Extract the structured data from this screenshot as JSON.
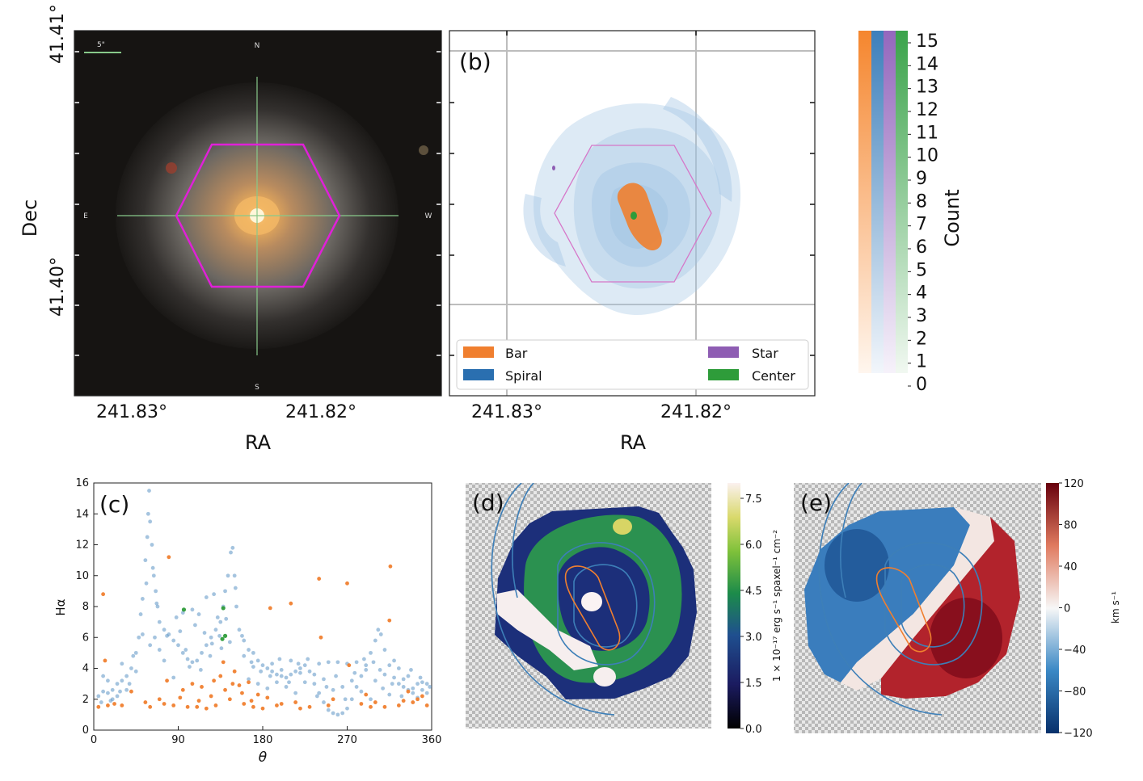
{
  "panels": {
    "a": {
      "xlabel": "RA",
      "ylabel": "Dec",
      "xticks": [
        "241.83°",
        "241.82°"
      ],
      "yticks": [
        "41.41°",
        "41.40°"
      ],
      "compass": {
        "n": "N",
        "s": "S",
        "e": "E",
        "w": "W"
      },
      "scalebar": "5\""
    },
    "b": {
      "letter": "(b)",
      "xlabel": "RA",
      "xticks": [
        "241.83°",
        "241.82°"
      ],
      "legend": [
        {
          "label": "Bar",
          "color": "#f07f2f"
        },
        {
          "label": "Spiral",
          "color": "#2a6fb0"
        },
        {
          "label": "Star",
          "color": "#8e5db3"
        },
        {
          "label": "Center",
          "color": "#2e9c3a"
        }
      ]
    },
    "count_colorbar": {
      "label": "Count",
      "ticks": [
        "15",
        "14",
        "13",
        "12",
        "11",
        "10",
        "9",
        "8",
        "7",
        "6",
        "5",
        "4",
        "3",
        "2",
        "1",
        "0"
      ]
    },
    "d": {
      "letter": "(d)",
      "colorbar_ticks": [
        "7.5",
        "6.0",
        "4.5",
        "3.0",
        "1.5",
        "0.0"
      ],
      "colorbar_label": "1 × 10⁻¹⁷ erg s⁻¹ spaxel⁻¹ cm⁻²"
    },
    "e": {
      "letter": "(e)",
      "colorbar_ticks": [
        "120",
        "80",
        "40",
        "0",
        "−40",
        "−80",
        "−120"
      ],
      "colorbar_label": "km s⁻¹"
    }
  },
  "chart_data": [
    {
      "type": "scatter",
      "panel": "(c)",
      "title": "",
      "xlabel": "θ",
      "ylabel": "Hα",
      "xlim": [
        0,
        360
      ],
      "ylim": [
        0,
        16
      ],
      "xticks": [
        0,
        90,
        180,
        270,
        360
      ],
      "yticks": [
        0,
        2,
        4,
        6,
        8,
        10,
        12,
        14,
        16
      ],
      "series": [
        {
          "name": "Spiral",
          "color": "#5b93c4",
          "points": [
            [
              5,
              2.2
            ],
            [
              10,
              2.5
            ],
            [
              15,
              2.4
            ],
            [
              20,
              2.6
            ],
            [
              25,
              3.0
            ],
            [
              30,
              3.2
            ],
            [
              35,
              3.5
            ],
            [
              40,
              4.0
            ],
            [
              45,
              5.0
            ],
            [
              48,
              6.0
            ],
            [
              50,
              7.5
            ],
            [
              52,
              8.5
            ],
            [
              55,
              11
            ],
            [
              57,
              12.5
            ],
            [
              58,
              14
            ],
            [
              59,
              15.5
            ],
            [
              60,
              13.5
            ],
            [
              62,
              12
            ],
            [
              64,
              10
            ],
            [
              66,
              9
            ],
            [
              68,
              8
            ],
            [
              70,
              7
            ],
            [
              75,
              6.5
            ],
            [
              80,
              6.2
            ],
            [
              85,
              5.8
            ],
            [
              90,
              5.5
            ],
            [
              95,
              5.0
            ],
            [
              100,
              4.6
            ],
            [
              105,
              4.4
            ],
            [
              110,
              4.5
            ],
            [
              115,
              5.0
            ],
            [
              120,
              5.5
            ],
            [
              125,
              6.0
            ],
            [
              130,
              6.5
            ],
            [
              135,
              7.0
            ],
            [
              138,
              8.0
            ],
            [
              140,
              9.0
            ],
            [
              143,
              10
            ],
            [
              146,
              11.5
            ],
            [
              148,
              11.8
            ],
            [
              150,
              10
            ],
            [
              152,
              8
            ],
            [
              155,
              6.5
            ],
            [
              160,
              5.8
            ],
            [
              165,
              5.2
            ],
            [
              170,
              5.0
            ],
            [
              175,
              4.5
            ],
            [
              180,
              4.2
            ],
            [
              185,
              4.0
            ],
            [
              190,
              3.8
            ],
            [
              195,
              3.6
            ],
            [
              200,
              3.5
            ],
            [
              205,
              3.4
            ],
            [
              210,
              3.6
            ],
            [
              215,
              3.8
            ],
            [
              220,
              4.0
            ],
            [
              225,
              4.2
            ],
            [
              230,
              3.8
            ],
            [
              235,
              3.0
            ],
            [
              240,
              2.4
            ],
            [
              245,
              1.8
            ],
            [
              250,
              1.3
            ],
            [
              255,
              1.1
            ],
            [
              260,
              1.0
            ],
            [
              265,
              1.1
            ],
            [
              270,
              1.4
            ],
            [
              275,
              2.0
            ],
            [
              280,
              2.8
            ],
            [
              285,
              3.5
            ],
            [
              290,
              4.2
            ],
            [
              295,
              5.0
            ],
            [
              300,
              5.8
            ],
            [
              303,
              6.5
            ],
            [
              306,
              6.2
            ],
            [
              310,
              5.2
            ],
            [
              315,
              4.2
            ],
            [
              320,
              3.4
            ],
            [
              325,
              3.0
            ],
            [
              330,
              2.8
            ],
            [
              335,
              2.6
            ],
            [
              340,
              2.7
            ],
            [
              345,
              3.0
            ],
            [
              350,
              3.1
            ],
            [
              355,
              3.0
            ],
            [
              20,
              2.0
            ],
            [
              30,
              4.3
            ],
            [
              42,
              4.8
            ],
            [
              60,
              5.5
            ],
            [
              70,
              5.2
            ],
            [
              88,
              7.3
            ],
            [
              95,
              7.6
            ],
            [
              105,
              7.8
            ],
            [
              112,
              7.5
            ],
            [
              120,
              8.6
            ],
            [
              128,
              8.8
            ],
            [
              132,
              7.3
            ],
            [
              160,
              4.8
            ],
            [
              170,
              4.1
            ],
            [
              190,
              4.3
            ],
            [
              200,
              3.9
            ],
            [
              210,
              4.5
            ],
            [
              220,
              3.7
            ],
            [
              240,
              4.3
            ],
            [
              250,
              4.4
            ],
            [
              260,
              4.4
            ],
            [
              270,
              4.3
            ],
            [
              280,
              4.4
            ],
            [
              290,
              3.9
            ],
            [
              300,
              3.2
            ],
            [
              310,
              3.6
            ],
            [
              320,
              4.5
            ],
            [
              330,
              3.3
            ],
            [
              340,
              2.4
            ],
            [
              350,
              2.6
            ],
            [
              10,
              3.5
            ],
            [
              15,
              3.2
            ],
            [
              25,
              2.2
            ],
            [
              35,
              2.6
            ],
            [
              45,
              3.8
            ],
            [
              65,
              6.0
            ],
            [
              75,
              4.5
            ],
            [
              85,
              3.4
            ],
            [
              98,
              5.2
            ],
            [
              108,
              6.8
            ],
            [
              118,
              6.3
            ],
            [
              124,
              4.8
            ],
            [
              136,
              5.3
            ],
            [
              145,
              5.7
            ],
            [
              165,
              3.3
            ],
            [
              175,
              3.0
            ],
            [
              185,
              2.7
            ],
            [
              195,
              3.1
            ],
            [
              205,
              2.8
            ],
            [
              215,
              2.4
            ],
            [
              225,
              3.1
            ],
            [
              235,
              3.6
            ],
            [
              245,
              3.3
            ],
            [
              255,
              2.6
            ],
            [
              265,
              2.8
            ],
            [
              275,
              3.2
            ],
            [
              285,
              2.5
            ],
            [
              295,
              2.0
            ],
            [
              305,
              3.9
            ],
            [
              315,
              2.3
            ],
            [
              325,
              4.0
            ],
            [
              335,
              3.5
            ],
            [
              345,
              2.1
            ],
            [
              355,
              2.4
            ],
            [
              8,
              1.8
            ],
            [
              18,
              1.9
            ],
            [
              28,
              2.5
            ],
            [
              38,
              3.0
            ],
            [
              52,
              6.2
            ],
            [
              56,
              9.5
            ],
            [
              63,
              10.5
            ],
            [
              67,
              8.2
            ],
            [
              78,
              6.1
            ],
            [
              92,
              6.4
            ],
            [
              102,
              4.1
            ],
            [
              114,
              3.9
            ],
            [
              126,
              5.6
            ],
            [
              134,
              6.1
            ],
            [
              141,
              7.2
            ],
            [
              151,
              9.2
            ],
            [
              158,
              6.1
            ],
            [
              168,
              4.4
            ],
            [
              178,
              3.8
            ],
            [
              188,
              3.5
            ],
            [
              198,
              4.6
            ],
            [
              208,
              3.1
            ],
            [
              218,
              4.3
            ],
            [
              228,
              4.6
            ],
            [
              238,
              2.2
            ],
            [
              248,
              2.8
            ],
            [
              258,
              3.5
            ],
            [
              268,
              2.0
            ],
            [
              278,
              3.7
            ],
            [
              288,
              4.6
            ],
            [
              298,
              4.4
            ],
            [
              308,
              2.7
            ],
            [
              318,
              3.0
            ],
            [
              328,
              2.2
            ],
            [
              338,
              3.9
            ],
            [
              348,
              3.4
            ],
            [
              358,
              2.8
            ]
          ]
        },
        {
          "name": "Bar",
          "color": "#f07f2f",
          "points": [
            [
              5,
              1.5
            ],
            [
              10,
              8.8
            ],
            [
              12,
              4.5
            ],
            [
              15,
              1.6
            ],
            [
              22,
              1.7
            ],
            [
              30,
              1.6
            ],
            [
              40,
              2.5
            ],
            [
              55,
              1.8
            ],
            [
              70,
              2.0
            ],
            [
              78,
              3.2
            ],
            [
              80,
              11.2
            ],
            [
              85,
              1.6
            ],
            [
              92,
              2.1
            ],
            [
              100,
              1.5
            ],
            [
              105,
              3.0
            ],
            [
              110,
              1.5
            ],
            [
              115,
              2.8
            ],
            [
              120,
              1.4
            ],
            [
              125,
              2.2
            ],
            [
              130,
              1.6
            ],
            [
              135,
              3.5
            ],
            [
              140,
              2.6
            ],
            [
              145,
              2.0
            ],
            [
              150,
              3.8
            ],
            [
              155,
              2.9
            ],
            [
              160,
              1.7
            ],
            [
              165,
              3.1
            ],
            [
              170,
              1.5
            ],
            [
              175,
              2.3
            ],
            [
              180,
              1.4
            ],
            [
              185,
              2.1
            ],
            [
              188,
              7.9
            ],
            [
              195,
              1.6
            ],
            [
              210,
              8.2
            ],
            [
              215,
              1.8
            ],
            [
              230,
              1.5
            ],
            [
              240,
              9.8
            ],
            [
              242,
              6.0
            ],
            [
              255,
              2.0
            ],
            [
              270,
              9.5
            ],
            [
              272,
              4.2
            ],
            [
              285,
              1.7
            ],
            [
              290,
              2.3
            ],
            [
              300,
              1.8
            ],
            [
              310,
              1.5
            ],
            [
              315,
              7.1
            ],
            [
              316,
              10.6
            ],
            [
              325,
              1.6
            ],
            [
              335,
              2.5
            ],
            [
              340,
              1.8
            ],
            [
              350,
              2.2
            ],
            [
              355,
              1.6
            ],
            [
              60,
              1.5
            ],
            [
              75,
              1.7
            ],
            [
              95,
              2.6
            ],
            [
              112,
              1.9
            ],
            [
              128,
              3.2
            ],
            [
              138,
              4.4
            ],
            [
              148,
              3.0
            ],
            [
              158,
              2.4
            ],
            [
              168,
              1.9
            ],
            [
              200,
              1.7
            ],
            [
              220,
              1.4
            ],
            [
              250,
              1.6
            ],
            [
              295,
              1.5
            ],
            [
              330,
              1.9
            ],
            [
              345,
              2.0
            ]
          ]
        },
        {
          "name": "Center",
          "color": "#2e9c3a",
          "points": [
            [
              96,
              7.8
            ],
            [
              138,
              7.9
            ],
            [
              137,
              5.9
            ],
            [
              140,
              6.1
            ]
          ]
        }
      ]
    }
  ]
}
